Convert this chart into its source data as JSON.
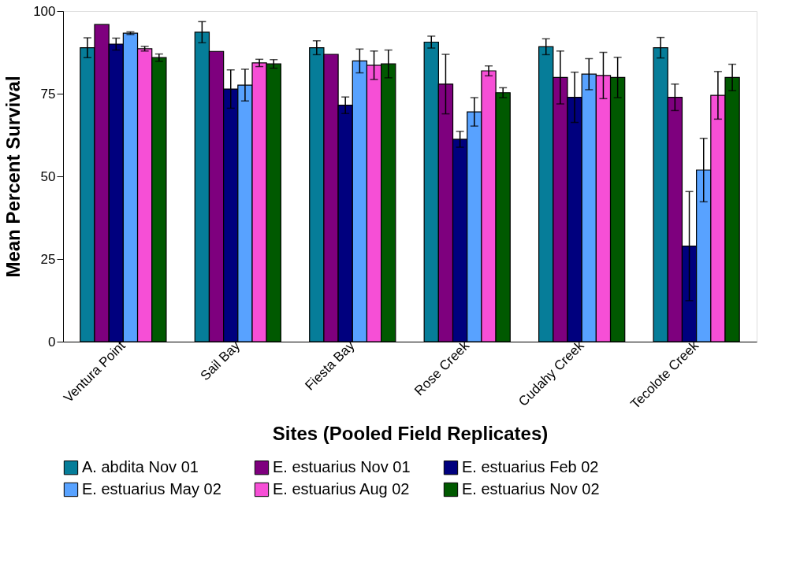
{
  "chart_data": {
    "type": "bar",
    "xlabel": "Sites (Pooled Field Replicates)",
    "ylabel": "Mean Percent Survival",
    "categories": [
      "Ventura Point",
      "Sail Bay",
      "Fiesta Bay",
      "Rose Creek",
      "Cudahy Creek",
      "Tecolote Creek"
    ],
    "series": [
      {
        "name": "A. abdita Nov 01",
        "color": "#067d99",
        "values": [
          88.9,
          93.6,
          88.9,
          90.6,
          89.2,
          88.9
        ],
        "errors": [
          3.0,
          3.2,
          2.1,
          1.8,
          2.4,
          3.1
        ]
      },
      {
        "name": "E. estuarius Nov 01",
        "color": "#7e007e",
        "values": [
          95.9,
          87.8,
          86.9,
          77.9,
          79.9,
          73.9
        ],
        "errors": [
          null,
          null,
          null,
          9.0,
          8.0,
          4.0
        ]
      },
      {
        "name": "E. estuarius Feb 02",
        "color": "#00007e",
        "values": [
          90.0,
          76.4,
          71.5,
          61.2,
          73.9,
          28.9
        ],
        "errors": [
          1.8,
          5.8,
          2.5,
          2.4,
          7.6,
          16.5
        ]
      },
      {
        "name": "E. estuarius May 02",
        "color": "#58a2ff",
        "values": [
          93.3,
          77.6,
          84.9,
          69.5,
          80.9,
          51.9
        ],
        "errors": [
          0.4,
          4.8,
          3.6,
          4.3,
          4.7,
          9.6
        ]
      },
      {
        "name": "E. estuarius Aug 02",
        "color": "#f64fd6",
        "values": [
          88.6,
          84.3,
          83.6,
          81.9,
          80.5,
          74.5
        ],
        "errors": [
          0.7,
          1.1,
          4.3,
          1.5,
          7.0,
          7.2
        ]
      },
      {
        "name": "E. estuarius Nov 02",
        "color": "#005900",
        "values": [
          85.9,
          84.0,
          84.0,
          75.3,
          79.9,
          79.9
        ],
        "errors": [
          1.1,
          1.3,
          4.2,
          1.5,
          6.1,
          4.0
        ]
      }
    ],
    "ylim": [
      0,
      100
    ],
    "yticks": [
      0,
      25,
      50,
      75,
      100
    ],
    "grid": false,
    "legend": "bottom"
  }
}
